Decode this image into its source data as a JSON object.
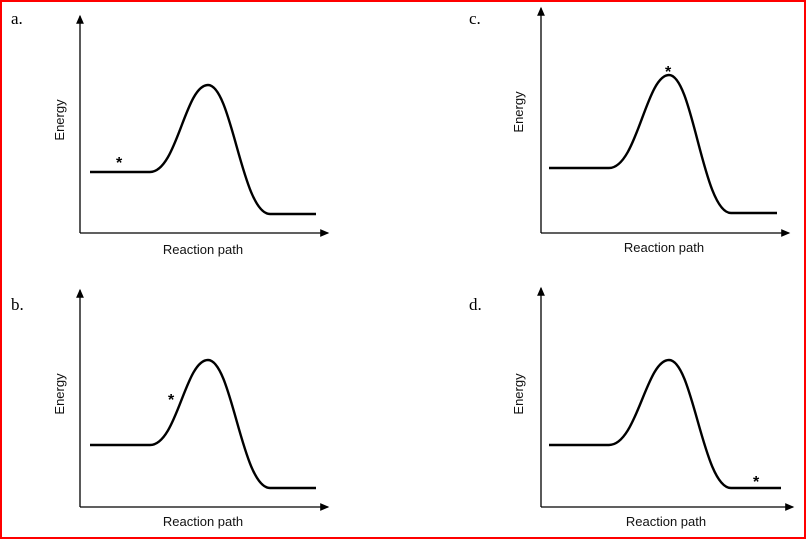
{
  "panels": [
    {
      "label": "a.",
      "ylabel": "Energy",
      "xlabel": "Reaction path",
      "marker": "*",
      "marker_position": "reactant plateau"
    },
    {
      "label": "b.",
      "ylabel": "Energy",
      "xlabel": "Reaction path",
      "marker": "*",
      "marker_position": "rising slope"
    },
    {
      "label": "c.",
      "ylabel": "Energy",
      "xlabel": "Reaction path",
      "marker": "*",
      "marker_position": "peak"
    },
    {
      "label": "d.",
      "ylabel": "Energy",
      "xlabel": "Reaction path",
      "marker": "*",
      "marker_position": "product plateau"
    }
  ],
  "colors": {
    "border": "#ff0000",
    "line": "#000000"
  }
}
